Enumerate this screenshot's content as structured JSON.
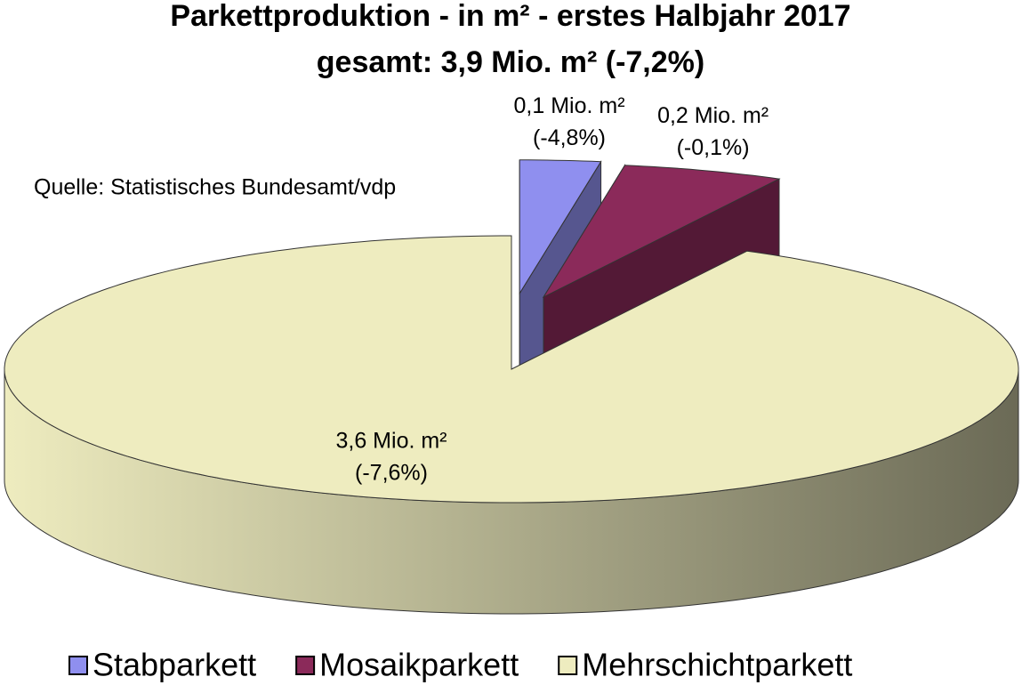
{
  "chart_data": {
    "type": "pie3d",
    "title": "Parkettproduktion - in m² - erstes Halbjahr 2017",
    "subtitle": "gesamt: 3,9 Mio. m² (-7,2%)",
    "annotation": "Quelle: Statistisches Bundesamt/vdp",
    "categories": [
      "Stabparkett",
      "Mosaikparkett",
      "Mehrschichtparkett"
    ],
    "values": [
      0.1,
      0.2,
      3.6
    ],
    "value_labels": [
      "0,1 Mio. m²",
      "0,2 Mio. m²",
      "3,6 Mio. m²"
    ],
    "change_labels": [
      "(-4,8%)",
      "(-0,1%)",
      "(-7,6%)"
    ],
    "colors": [
      "#8f8fef",
      "#8b2a5a",
      "#eeecbf"
    ],
    "exploded": [
      true,
      true,
      false
    ]
  }
}
